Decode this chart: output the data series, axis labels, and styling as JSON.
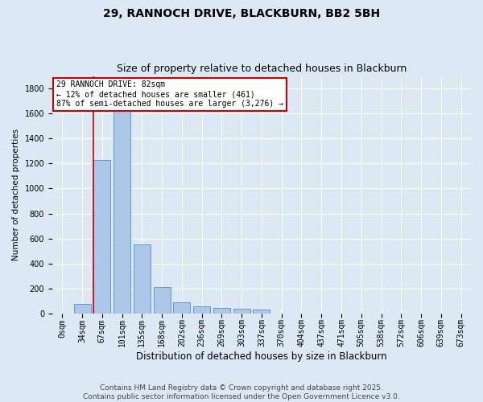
{
  "title1": "29, RANNOCH DRIVE, BLACKBURN, BB2 5BH",
  "title2": "Size of property relative to detached houses in Blackburn",
  "xlabel": "Distribution of detached houses by size in Blackburn",
  "ylabel": "Number of detached properties",
  "categories": [
    "0sqm",
    "34sqm",
    "67sqm",
    "101sqm",
    "135sqm",
    "168sqm",
    "202sqm",
    "236sqm",
    "269sqm",
    "303sqm",
    "337sqm",
    "370sqm",
    "404sqm",
    "437sqm",
    "471sqm",
    "505sqm",
    "538sqm",
    "572sqm",
    "606sqm",
    "639sqm",
    "673sqm"
  ],
  "values": [
    0,
    75,
    1225,
    1650,
    550,
    215,
    90,
    55,
    45,
    40,
    35,
    0,
    0,
    0,
    0,
    0,
    0,
    0,
    0,
    0,
    0
  ],
  "bar_color": "#aec6e8",
  "bar_edge_color": "#5b9bd5",
  "vline_color": "#cc0000",
  "annotation_text": "29 RANNOCH DRIVE: 82sqm\n← 12% of detached houses are smaller (461)\n87% of semi-detached houses are larger (3,276) →",
  "annotation_box_color": "#ffffff",
  "annotation_box_edge": "#cc0000",
  "ylim": [
    0,
    1900
  ],
  "yticks": [
    0,
    200,
    400,
    600,
    800,
    1000,
    1200,
    1400,
    1600,
    1800
  ],
  "bg_color": "#dce9f5",
  "plot_bg_color": "#dce9f5",
  "footer_text": "Contains HM Land Registry data © Crown copyright and database right 2025.\nContains public sector information licensed under the Open Government Licence v3.0.",
  "title1_fontsize": 10,
  "title2_fontsize": 9,
  "xlabel_fontsize": 8.5,
  "ylabel_fontsize": 7.5,
  "tick_fontsize": 7,
  "annotation_fontsize": 7,
  "footer_fontsize": 6.5,
  "grid_color": "#ffffff"
}
